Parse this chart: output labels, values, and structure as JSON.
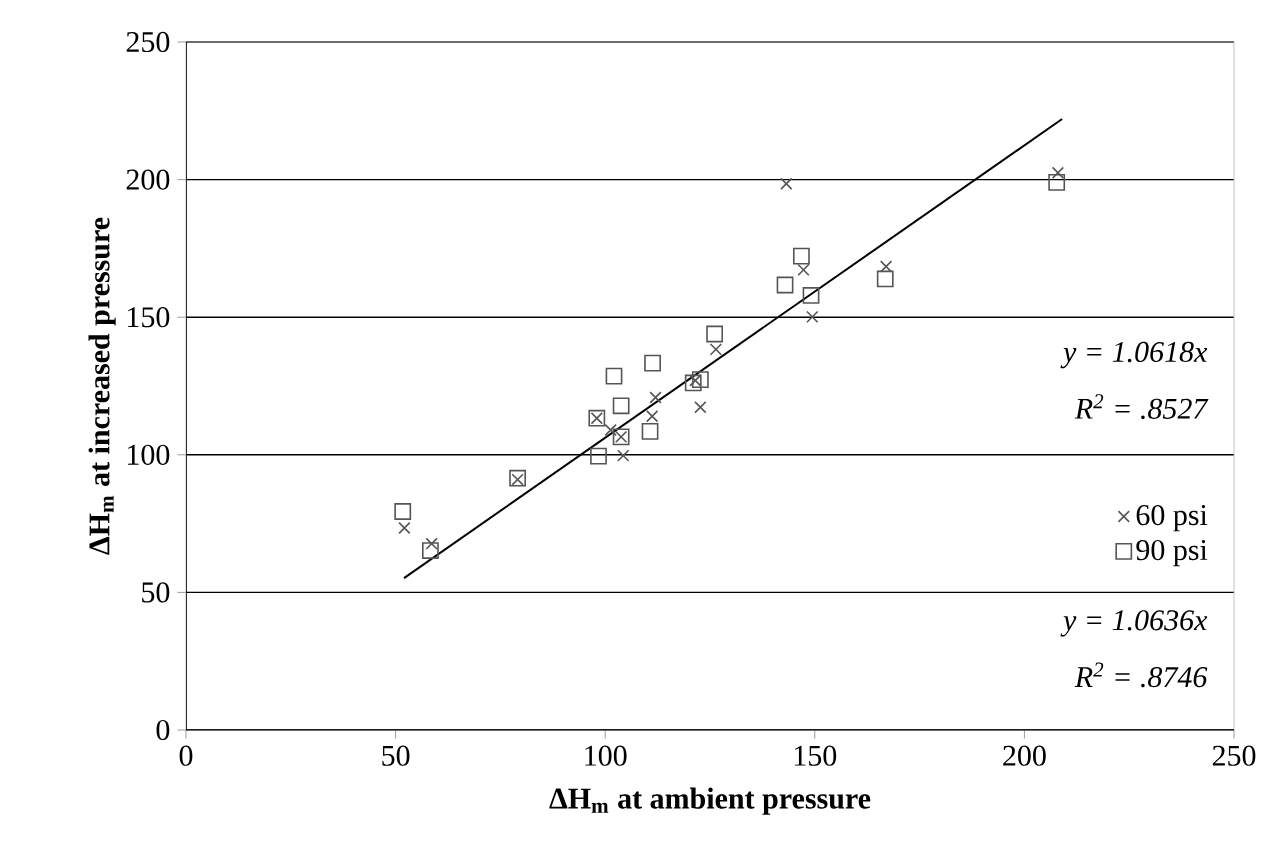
{
  "chart_data": {
    "type": "scatter",
    "xlabel": "ΔH$_{m}$ at ambient pressure",
    "ylabel": "ΔH$_{m}$ at increased pressure",
    "xlim": [
      0,
      250
    ],
    "ylim": [
      0,
      250
    ],
    "xticks": [
      0,
      50,
      100,
      150,
      200,
      250
    ],
    "yticks": [
      0,
      50,
      100,
      150,
      200,
      250
    ],
    "grid": "y",
    "legend": "right",
    "annotations": [
      "y = 1.0618x",
      "R$^{2}$ = .8527",
      "y = 1.0636x",
      "R$^{2}$ = .8746"
    ],
    "series": [
      {
        "name": "60 psi",
        "color": "#555555",
        "marker": "cross",
        "x": [
          52.1,
          58.6,
          79.1,
          98,
          101.3,
          103.8,
          104.3,
          111.2,
          112,
          121.5,
          122.7,
          126.4,
          143.2,
          147.3,
          149.4,
          167,
          208
        ],
        "values": [
          73.4,
          67.7,
          91,
          113.3,
          109,
          106.5,
          99.7,
          114,
          120.8,
          127,
          117.3,
          138.3,
          198.5,
          167.2,
          150.1,
          168.4,
          202.5
        ]
      },
      {
        "name": "90 psi",
        "color": "#555555",
        "marker": "square",
        "x": [
          51.7,
          58.3,
          79.1,
          98,
          98.4,
          102.1,
          103.8,
          103.8,
          110.7,
          111.3,
          121,
          122.7,
          126.1,
          142.9,
          146.8,
          149.1,
          166.8,
          207.7
        ],
        "values": [
          79.4,
          65.2,
          91.5,
          113.3,
          99.5,
          128.6,
          117.8,
          106.5,
          108.5,
          133.3,
          126.1,
          127.3,
          143.9,
          161.7,
          172.2,
          157.9,
          163.9,
          199
        ]
      },
      {
        "type": "line",
        "color": "#000000",
        "marker": "none",
        "x": [
          52,
          209
        ],
        "values": [
          55.2,
          222
        ]
      }
    ]
  }
}
